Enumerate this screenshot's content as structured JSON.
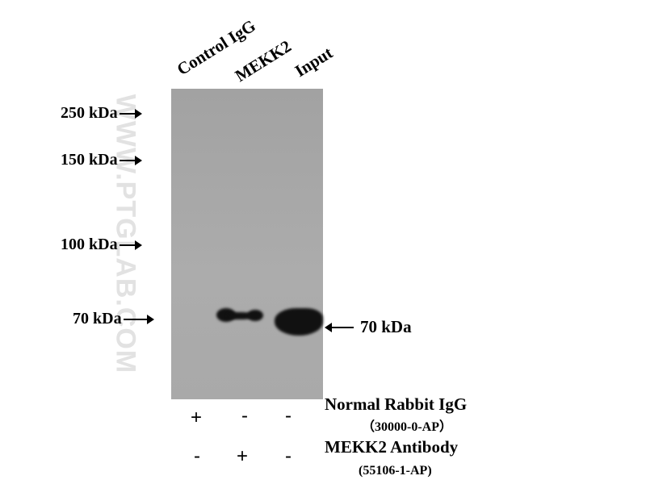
{
  "watermark": "WWW.PTGLAB.COM",
  "lanes": [
    "Control IgG",
    "MEKK2",
    "Input"
  ],
  "markers": [
    "250 kDa",
    "150 kDa",
    "100 kDa",
    "70 kDa"
  ],
  "band_label": "70 kDa",
  "rows": [
    {
      "label": "Normal Rabbit IgG",
      "catalog": "（30000-0-AP）",
      "signs": [
        "+",
        "-",
        "-"
      ]
    },
    {
      "label": "MEKK2 Antibody",
      "catalog": "(55106-1-AP)",
      "signs": [
        "-",
        "+",
        "-"
      ]
    }
  ],
  "colors": {
    "membrane": "#a8a8a8",
    "band": "#111111"
  }
}
